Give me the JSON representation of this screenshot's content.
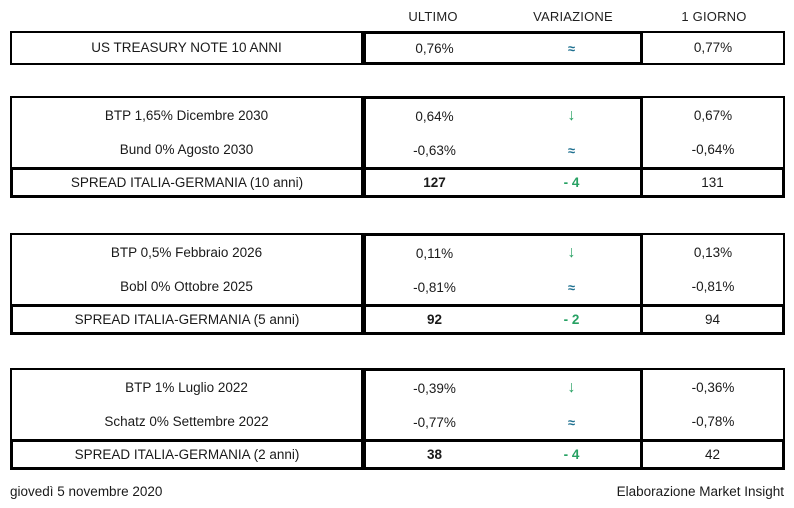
{
  "colors": {
    "trend_down_green": "#27A163",
    "stable_blue": "#1D6F8F",
    "border": "#000000",
    "background": "#ffffff"
  },
  "header": {
    "columns": [
      "ULTIMO",
      "VARIAZIONE",
      "1 GIORNO"
    ]
  },
  "us_treasury": {
    "label": "US TREASURY NOTE 10 ANNI",
    "ultimo": "0,76%",
    "variazione": "≈",
    "variazione_meaning": "stable",
    "giorno": "0,77%"
  },
  "blocks": [
    {
      "bonds": [
        {
          "label": "BTP 1,65% Dicembre 2030",
          "ultimo": "0,64%",
          "variazione": "↓",
          "variazione_meaning": "down",
          "giorno": "0,67%"
        },
        {
          "label": "Bund 0% Agosto 2030",
          "ultimo": "-0,63%",
          "variazione": "≈",
          "variazione_meaning": "stable",
          "giorno": "-0,64%"
        }
      ],
      "spread": {
        "label": "SPREAD ITALIA-GERMANIA (10 anni)",
        "ultimo": "127",
        "variazione": "- 4",
        "giorno": "131"
      }
    },
    {
      "bonds": [
        {
          "label": "BTP 0,5% Febbraio 2026",
          "ultimo": "0,11%",
          "variazione": "↓",
          "variazione_meaning": "down",
          "giorno": "0,13%"
        },
        {
          "label": "Bobl 0% Ottobre 2025",
          "ultimo": "-0,81%",
          "variazione": "≈",
          "variazione_meaning": "stable",
          "giorno": "-0,81%"
        }
      ],
      "spread": {
        "label": "SPREAD ITALIA-GERMANIA (5 anni)",
        "ultimo": "92",
        "variazione": "- 2",
        "giorno": "94"
      }
    },
    {
      "bonds": [
        {
          "label": "BTP 1% Luglio 2022",
          "ultimo": "-0,39%",
          "variazione": "↓",
          "variazione_meaning": "down",
          "giorno": "-0,36%"
        },
        {
          "label": "Schatz 0% Settembre 2022",
          "ultimo": "-0,77%",
          "variazione": "≈",
          "variazione_meaning": "stable",
          "giorno": "-0,78%"
        }
      ],
      "spread": {
        "label": "SPREAD ITALIA-GERMANIA (2 anni)",
        "ultimo": "38",
        "variazione": "- 4",
        "giorno": "42"
      }
    }
  ],
  "footer": {
    "date": "giovedì 5 novembre 2020",
    "attribution": "Elaborazione Market Insight"
  }
}
